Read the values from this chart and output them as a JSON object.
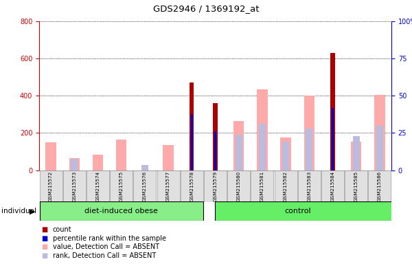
{
  "title": "GDS2946 / 1369192_at",
  "samples": [
    "GSM215572",
    "GSM215573",
    "GSM215574",
    "GSM215575",
    "GSM215576",
    "GSM215577",
    "GSM215578",
    "GSM215579",
    "GSM215580",
    "GSM215581",
    "GSM215582",
    "GSM215583",
    "GSM215584",
    "GSM215585",
    "GSM215586"
  ],
  "count": [
    0,
    0,
    0,
    0,
    0,
    0,
    470,
    360,
    0,
    0,
    0,
    0,
    630,
    0,
    0
  ],
  "percentile_rank": [
    0,
    0,
    0,
    0,
    0,
    0,
    300,
    210,
    0,
    0,
    0,
    0,
    335,
    0,
    0
  ],
  "value_absent": [
    150,
    65,
    85,
    165,
    0,
    135,
    0,
    0,
    265,
    435,
    175,
    400,
    0,
    155,
    405
  ],
  "rank_absent": [
    0,
    60,
    0,
    0,
    30,
    0,
    0,
    0,
    190,
    250,
    155,
    225,
    0,
    185,
    240
  ],
  "ylim_left": [
    0,
    800
  ],
  "ylim_right": [
    0,
    100
  ],
  "yticks_left": [
    0,
    200,
    400,
    600,
    800
  ],
  "yticks_right": [
    0,
    25,
    50,
    75,
    100
  ],
  "left_axis_color": "#cc0000",
  "right_axis_color": "#0000cc",
  "color_count": "#aa0000",
  "color_percentile": "#0000cc",
  "color_value_absent": "#ffaaaa",
  "color_rank_absent": "#bbbbdd",
  "background_color": "#e0e0e0",
  "plot_bg": "#ffffff",
  "group1_color": "#88ee88",
  "group2_color": "#66ee66",
  "legend_items": [
    "count",
    "percentile rank within the sample",
    "value, Detection Call = ABSENT",
    "rank, Detection Call = ABSENT"
  ],
  "legend_colors": [
    "#aa0000",
    "#0000cc",
    "#ffaaaa",
    "#bbbbdd"
  ],
  "n_group1": 7,
  "n_group2": 8
}
